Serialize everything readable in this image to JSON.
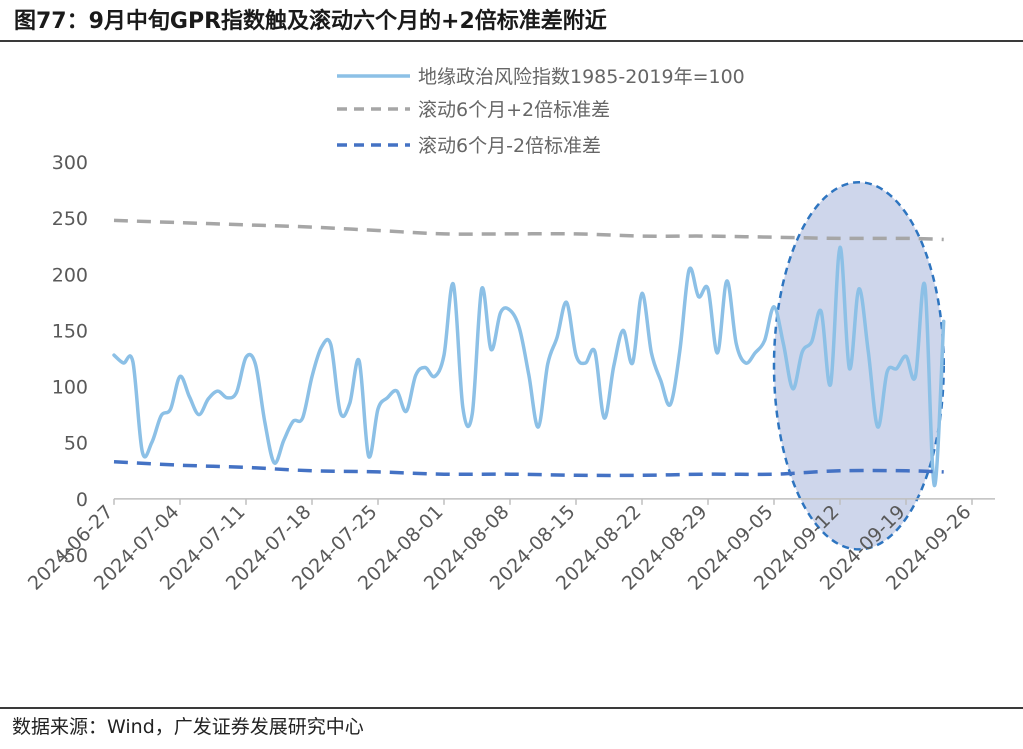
{
  "header": {
    "title": "图77：9月中旬GPR指数触及滚动六个月的+2倍标准差附近"
  },
  "footer": {
    "source": "数据来源：Wind，广发证券发展研究中心"
  },
  "colors": {
    "gpr": "#8cc0e6",
    "upper": "#a6a6a6",
    "lower": "#4472c4",
    "highlight_fill": "#c5cfe8",
    "highlight_stroke": "#2e75c0",
    "axis": "#bfbfbf"
  },
  "chart_data": {
    "type": "line",
    "x_start": "2024-06-27",
    "x_end": "2024-09-23",
    "x_ticks": [
      "2024-06-27",
      "2024-07-04",
      "2024-07-11",
      "2024-07-18",
      "2024-07-25",
      "2024-08-01",
      "2024-08-08",
      "2024-08-15",
      "2024-08-22",
      "2024-08-29",
      "2024-09-05",
      "2024-09-12",
      "2024-09-19",
      "2024-09-26"
    ],
    "y_ticks": [
      "300",
      "250",
      "200",
      "150",
      "100",
      "50",
      "0",
      "-50"
    ],
    "ylim": [
      -50,
      300
    ],
    "legend_position": "top",
    "series": [
      {
        "name": "地缘政治风险指数1985-2019年=100",
        "style": "solid",
        "x": [
          "2024-06-27",
          "2024-06-28",
          "2024-06-29",
          "2024-06-30",
          "2024-07-01",
          "2024-07-02",
          "2024-07-03",
          "2024-07-04",
          "2024-07-05",
          "2024-07-06",
          "2024-07-07",
          "2024-07-08",
          "2024-07-09",
          "2024-07-10",
          "2024-07-11",
          "2024-07-12",
          "2024-07-13",
          "2024-07-14",
          "2024-07-15",
          "2024-07-16",
          "2024-07-17",
          "2024-07-18",
          "2024-07-19",
          "2024-07-20",
          "2024-07-21",
          "2024-07-22",
          "2024-07-23",
          "2024-07-24",
          "2024-07-25",
          "2024-07-26",
          "2024-07-27",
          "2024-07-28",
          "2024-07-29",
          "2024-07-30",
          "2024-07-31",
          "2024-08-01",
          "2024-08-02",
          "2024-08-03",
          "2024-08-04",
          "2024-08-05",
          "2024-08-06",
          "2024-08-07",
          "2024-08-08",
          "2024-08-09",
          "2024-08-10",
          "2024-08-11",
          "2024-08-12",
          "2024-08-13",
          "2024-08-14",
          "2024-08-15",
          "2024-08-16",
          "2024-08-17",
          "2024-08-18",
          "2024-08-19",
          "2024-08-20",
          "2024-08-21",
          "2024-08-22",
          "2024-08-23",
          "2024-08-24",
          "2024-08-25",
          "2024-08-26",
          "2024-08-27",
          "2024-08-28",
          "2024-08-29",
          "2024-08-30",
          "2024-08-31",
          "2024-09-01",
          "2024-09-02",
          "2024-09-03",
          "2024-09-04",
          "2024-09-05",
          "2024-09-06",
          "2024-09-07",
          "2024-09-08",
          "2024-09-09",
          "2024-09-10",
          "2024-09-11",
          "2024-09-12",
          "2024-09-13",
          "2024-09-14",
          "2024-09-15",
          "2024-09-16",
          "2024-09-17",
          "2024-09-18",
          "2024-09-19",
          "2024-09-20",
          "2024-09-21",
          "2024-09-22",
          "2024-09-23"
        ],
        "values": [
          128,
          121,
          122,
          42,
          50,
          74,
          80,
          109,
          91,
          75,
          89,
          96,
          90,
          95,
          126,
          120,
          68,
          32,
          52,
          69,
          72,
          109,
          135,
          137,
          77,
          85,
          123,
          38,
          80,
          90,
          96,
          78,
          110,
          117,
          109,
          128,
          191,
          81,
          76,
          187,
          133,
          166,
          168,
          152,
          110,
          64,
          120,
          144,
          175,
          128,
          121,
          131,
          72,
          118,
          150,
          121,
          183,
          130,
          105,
          84,
          131,
          204,
          180,
          187,
          130,
          194,
          138,
          121,
          130,
          141,
          171,
          138,
          98,
          131,
          140,
          167,
          102,
          224,
          116,
          187,
          131,
          64,
          113,
          116,
          127,
          109,
          190,
          12,
          158
        ]
      },
      {
        "name": "滚动6个月+2倍标准差",
        "style": "dash",
        "x": [
          "2024-06-27",
          "2024-07-04",
          "2024-07-11",
          "2024-07-18",
          "2024-07-25",
          "2024-08-01",
          "2024-08-08",
          "2024-08-15",
          "2024-08-22",
          "2024-08-29",
          "2024-09-05",
          "2024-09-12",
          "2024-09-19",
          "2024-09-23"
        ],
        "values": [
          248,
          246,
          244,
          242,
          239,
          236,
          236,
          236,
          234,
          234,
          233,
          232,
          232,
          231
        ]
      },
      {
        "name": "滚动6个月-2倍标准差",
        "style": "dash",
        "x": [
          "2024-06-27",
          "2024-07-04",
          "2024-07-11",
          "2024-07-18",
          "2024-07-25",
          "2024-08-01",
          "2024-08-08",
          "2024-08-15",
          "2024-08-22",
          "2024-08-29",
          "2024-09-05",
          "2024-09-12",
          "2024-09-19",
          "2024-09-23"
        ],
        "values": [
          33,
          30,
          28,
          25,
          24,
          22,
          22,
          21,
          21,
          22,
          22,
          25,
          25,
          24
        ]
      }
    ],
    "highlight": {
      "shape": "ellipse",
      "x_from": "2024-09-05",
      "x_to": "2024-09-23",
      "y_from": -45,
      "y_to": 282
    }
  }
}
